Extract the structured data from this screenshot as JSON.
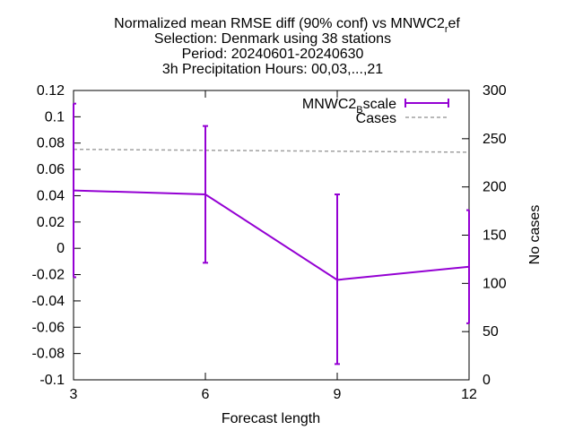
{
  "chart_data": {
    "type": "line",
    "title_lines": [
      "Normalized mean RMSE diff (90% conf) vs MNWC2",
      "Selection: Denmark using    38 stations",
      "Period: 20240601-20240630",
      "3h Precipitation   Hours: 00,03,...,21"
    ],
    "title_sub_main": "r",
    "title_sub_tail": "ef",
    "xlabel": "Forecast length",
    "ylabel_right": "No cases",
    "x": [
      3,
      6,
      9,
      12
    ],
    "xlim": [
      3,
      12
    ],
    "ylim": [
      -0.1,
      0.12
    ],
    "y2lim": [
      0,
      300
    ],
    "xticks": [
      "3",
      "6",
      "9",
      "12"
    ],
    "yticks": [
      "0.12",
      "0.1",
      "0.08",
      "0.06",
      "0.04",
      "0.02",
      "0",
      "-0.02",
      "-0.04",
      "-0.06",
      "-0.08",
      "-0.1"
    ],
    "y2ticks": [
      "300",
      "250",
      "200",
      "150",
      "100",
      "50",
      "0"
    ],
    "legend_position": "top-right",
    "series": [
      {
        "name": "MNWC2",
        "name_sub": "B",
        "name_tail": "scale",
        "color": "#9400d3",
        "axis": "left",
        "values": [
          0.044,
          0.041,
          -0.024,
          -0.014
        ],
        "err_low": [
          -0.022,
          -0.011,
          -0.088,
          -0.057
        ],
        "err_high": [
          0.11,
          0.093,
          0.041,
          0.029
        ]
      },
      {
        "name": "Cases",
        "color": "#a0a0a0",
        "axis": "right",
        "dashed": true,
        "values": [
          239,
          238,
          237,
          236
        ]
      }
    ]
  }
}
